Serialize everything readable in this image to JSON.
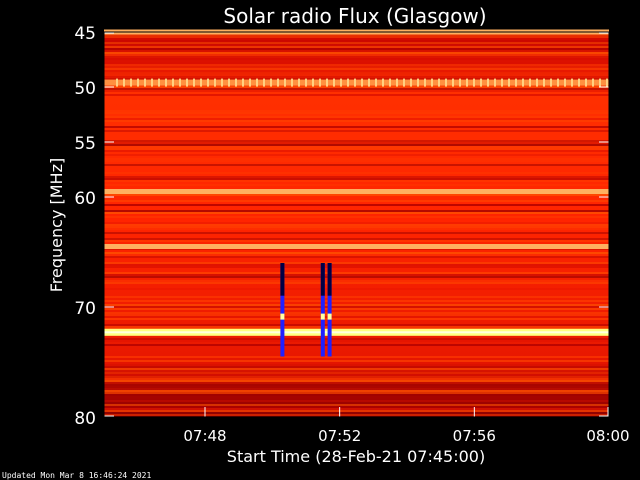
{
  "chart_data": {
    "type": "heatmap",
    "title": "Solar radio Flux (Glasgow)",
    "xlabel": "Start Time (28-Feb-21 07:45:00)",
    "ylabel": "Frequency [MHz]",
    "x_range": [
      "07:45",
      "08:00"
    ],
    "xlim_minutes": [
      45,
      60
    ],
    "ylim": [
      45,
      80
    ],
    "y_ticks": [
      45,
      50,
      55,
      60,
      70,
      80
    ],
    "x_ticks": [
      {
        "label": "07:48",
        "minute": 48
      },
      {
        "label": "07:52",
        "minute": 52
      },
      {
        "label": "07:56",
        "minute": 56
      },
      {
        "label": "08:00",
        "minute": 60
      }
    ],
    "colormap": [
      "#7a0000",
      "#c40000",
      "#ff2a00",
      "#ff7a00",
      "#ffd000",
      "#ffff9a",
      "#ffffff",
      "#0000ff",
      "#000066"
    ],
    "bright_bands_mhz": [
      {
        "freq": 45.0,
        "level": "high"
      },
      {
        "freq": 49.6,
        "level": "medium"
      },
      {
        "freq": 59.5,
        "level": "high"
      },
      {
        "freq": 64.5,
        "level": "high"
      },
      {
        "freq": 72.3,
        "level": "very-high"
      }
    ],
    "events": [
      {
        "minute": 50.3,
        "freq_start": 66,
        "freq_end": 74.5
      },
      {
        "minute": 51.5,
        "freq_start": 66,
        "freq_end": 74.5
      },
      {
        "minute": 51.7,
        "freq_start": 66,
        "freq_end": 74.5
      }
    ]
  },
  "footer": "Updated Mon Mar  8 16:46:24 2021"
}
